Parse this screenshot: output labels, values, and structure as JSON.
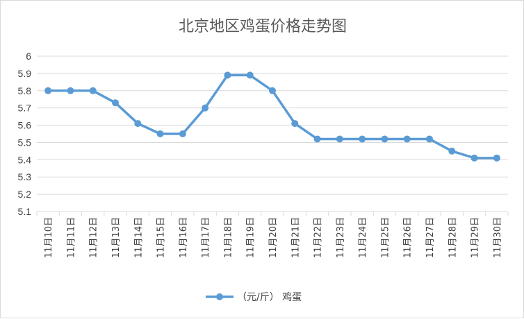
{
  "chart_data": {
    "type": "line",
    "title": "北京地区鸡蛋价格走势图",
    "xlabel": "",
    "ylabel": "",
    "categories": [
      "11月10日",
      "11月11日",
      "11月12日",
      "11月13日",
      "11月14日",
      "11月15日",
      "11月16日",
      "11月17日",
      "11月18日",
      "11月19日",
      "11月20日",
      "11月21日",
      "11月22日",
      "11月23日",
      "11月24日",
      "11月25日",
      "11月26日",
      "11月27日",
      "11月28日",
      "11月29日",
      "11月30日"
    ],
    "series": [
      {
        "name": "（元/斤） 鸡蛋",
        "values": [
          5.8,
          5.8,
          5.8,
          5.73,
          5.61,
          5.55,
          5.55,
          5.7,
          5.89,
          5.89,
          5.8,
          5.61,
          5.52,
          5.52,
          5.52,
          5.52,
          5.52,
          5.52,
          5.45,
          5.41,
          5.41
        ]
      }
    ],
    "ylim": [
      5.1,
      6.0
    ],
    "yticks": [
      "5.1",
      "5.2",
      "5.3",
      "5.4",
      "5.5",
      "5.6",
      "5.7",
      "5.8",
      "5.9",
      "6"
    ],
    "grid": true,
    "legend_position": "bottom",
    "colors": {
      "series": "#5b9bd5",
      "grid": "#d9d9d9",
      "text": "#404040",
      "title": "#595959"
    }
  }
}
